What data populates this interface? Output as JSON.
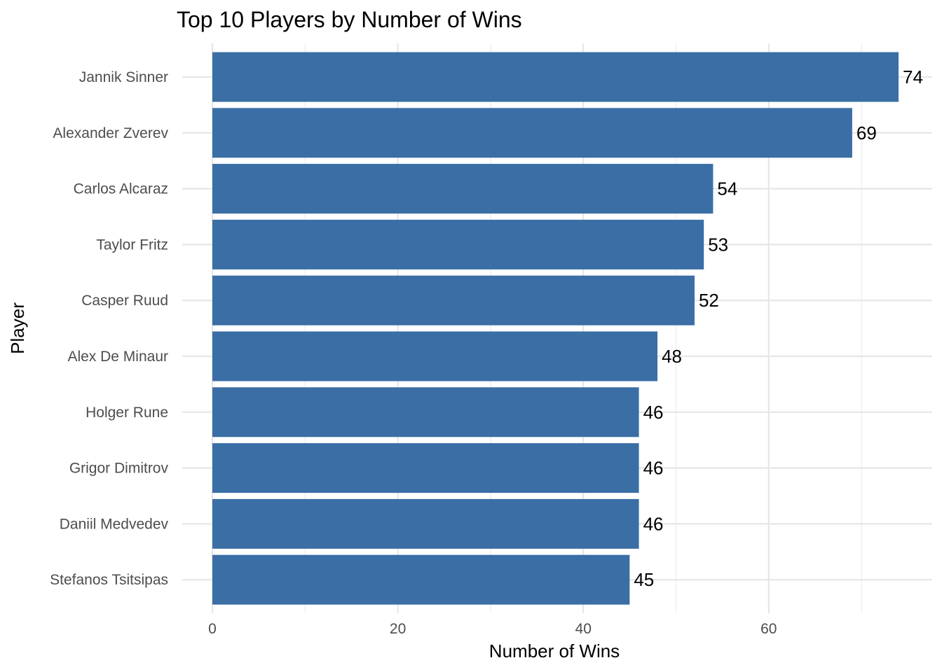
{
  "colors": {
    "bar": "#3a6ea5",
    "grid_major": "#e6e6e6",
    "grid_minor": "#f0f0f0"
  },
  "chart_data": {
    "type": "bar",
    "orientation": "horizontal",
    "title": "Top 10 Players by Number of Wins",
    "xlabel": "Number of Wins",
    "ylabel": "Player",
    "categories": [
      "Jannik Sinner",
      "Alexander Zverev",
      "Carlos Alcaraz",
      "Taylor Fritz",
      "Casper Ruud",
      "Alex De Minaur",
      "Holger Rune",
      "Grigor Dimitrov",
      "Daniil Medvedev",
      "Stefanos Tsitsipas"
    ],
    "values": [
      74,
      69,
      54,
      53,
      52,
      48,
      46,
      46,
      46,
      45
    ],
    "x_ticks": [
      0,
      20,
      40,
      60
    ],
    "xlim": [
      0,
      77.7
    ],
    "grid": true,
    "legend": "none"
  }
}
